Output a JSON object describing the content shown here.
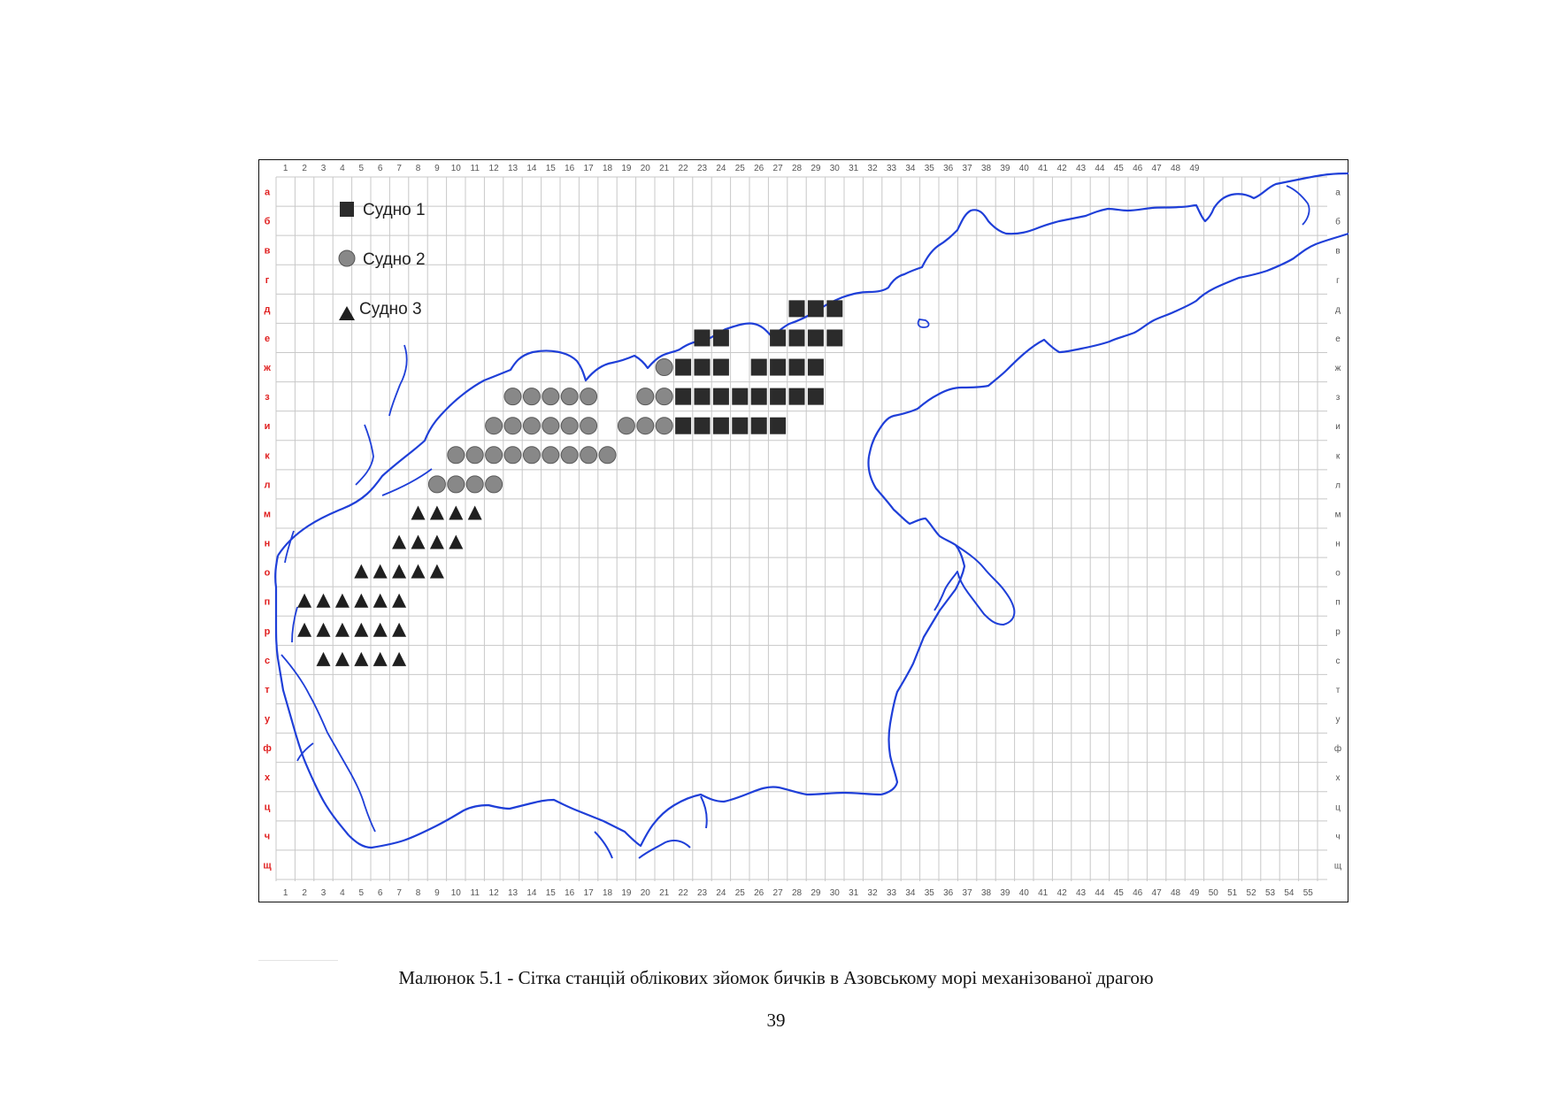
{
  "figure": {
    "column_labels_top": [
      "1",
      "2",
      "3",
      "4",
      "5",
      "6",
      "7",
      "8",
      "9",
      "10",
      "11",
      "12",
      "13",
      "14",
      "15",
      "16",
      "17",
      "18",
      "19",
      "20",
      "21",
      "22",
      "23",
      "24",
      "25",
      "26",
      "27",
      "28",
      "29",
      "30",
      "31",
      "32",
      "33",
      "34",
      "35",
      "36",
      "37",
      "38",
      "39",
      "40",
      "41",
      "42",
      "43",
      "44",
      "45",
      "46",
      "47",
      "48",
      "49"
    ],
    "column_labels_bottom": [
      "1",
      "2",
      "3",
      "4",
      "5",
      "6",
      "7",
      "8",
      "9",
      "10",
      "11",
      "12",
      "13",
      "14",
      "15",
      "16",
      "17",
      "18",
      "19",
      "20",
      "21",
      "22",
      "23",
      "24",
      "25",
      "26",
      "27",
      "28",
      "29",
      "30",
      "31",
      "32",
      "33",
      "34",
      "35",
      "36",
      "37",
      "38",
      "39",
      "40",
      "41",
      "42",
      "43",
      "44",
      "45",
      "46",
      "47",
      "48",
      "49",
      "50",
      "51",
      "52",
      "53",
      "54",
      "55"
    ],
    "row_labels": [
      "а",
      "б",
      "в",
      "г",
      "д",
      "е",
      "ж",
      "з",
      "и",
      "к",
      "л",
      "м",
      "н",
      "о",
      "п",
      "р",
      "с",
      "т",
      "у",
      "ф",
      "х",
      "ц",
      "ч",
      "щ"
    ],
    "legend": [
      {
        "label": "Судно 1",
        "marker": "square"
      },
      {
        "label": "Судно 2",
        "marker": "circle"
      },
      {
        "label": "Судно 3",
        "marker": "triangle"
      }
    ],
    "colors": {
      "coastline": "#1f3fd8",
      "grid": "#c8c8c8",
      "left_row_labels": "#e02020",
      "right_row_labels": "#555555",
      "column_labels": "#555555",
      "vessel_1": "#2b2b2b",
      "vessel_2": "#888888",
      "vessel_3": "#1f1f1f"
    },
    "stations": {
      "vessel_1": [
        [
          "д",
          28
        ],
        [
          "д",
          29
        ],
        [
          "д",
          30
        ],
        [
          "е",
          23
        ],
        [
          "е",
          24
        ],
        [
          "е",
          27
        ],
        [
          "е",
          28
        ],
        [
          "е",
          29
        ],
        [
          "е",
          30
        ],
        [
          "ж",
          22
        ],
        [
          "ж",
          23
        ],
        [
          "ж",
          24
        ],
        [
          "ж",
          26
        ],
        [
          "ж",
          27
        ],
        [
          "ж",
          28
        ],
        [
          "ж",
          29
        ],
        [
          "з",
          22
        ],
        [
          "з",
          23
        ],
        [
          "з",
          24
        ],
        [
          "з",
          25
        ],
        [
          "з",
          26
        ],
        [
          "з",
          27
        ],
        [
          "з",
          28
        ],
        [
          "з",
          29
        ],
        [
          "и",
          22
        ],
        [
          "и",
          23
        ],
        [
          "и",
          24
        ],
        [
          "и",
          25
        ],
        [
          "и",
          26
        ],
        [
          "и",
          27
        ]
      ],
      "vessel_2": [
        [
          "ж",
          21
        ],
        [
          "з",
          13
        ],
        [
          "з",
          14
        ],
        [
          "з",
          15
        ],
        [
          "з",
          16
        ],
        [
          "з",
          17
        ],
        [
          "з",
          20
        ],
        [
          "з",
          21
        ],
        [
          "и",
          12
        ],
        [
          "и",
          13
        ],
        [
          "и",
          14
        ],
        [
          "и",
          15
        ],
        [
          "и",
          16
        ],
        [
          "и",
          17
        ],
        [
          "и",
          19
        ],
        [
          "и",
          20
        ],
        [
          "и",
          21
        ],
        [
          "к",
          10
        ],
        [
          "к",
          11
        ],
        [
          "к",
          12
        ],
        [
          "к",
          13
        ],
        [
          "к",
          14
        ],
        [
          "к",
          15
        ],
        [
          "к",
          16
        ],
        [
          "к",
          17
        ],
        [
          "к",
          18
        ],
        [
          "л",
          9
        ],
        [
          "л",
          10
        ],
        [
          "л",
          11
        ],
        [
          "л",
          12
        ]
      ],
      "vessel_3": [
        [
          "м",
          8
        ],
        [
          "м",
          9
        ],
        [
          "м",
          10
        ],
        [
          "м",
          11
        ],
        [
          "н",
          7
        ],
        [
          "н",
          8
        ],
        [
          "н",
          9
        ],
        [
          "н",
          10
        ],
        [
          "о",
          5
        ],
        [
          "о",
          6
        ],
        [
          "о",
          7
        ],
        [
          "о",
          8
        ],
        [
          "о",
          9
        ],
        [
          "п",
          2
        ],
        [
          "п",
          3
        ],
        [
          "п",
          4
        ],
        [
          "п",
          5
        ],
        [
          "п",
          6
        ],
        [
          "п",
          7
        ],
        [
          "р",
          2
        ],
        [
          "р",
          3
        ],
        [
          "р",
          4
        ],
        [
          "р",
          5
        ],
        [
          "р",
          6
        ],
        [
          "р",
          7
        ],
        [
          "с",
          3
        ],
        [
          "с",
          4
        ],
        [
          "с",
          5
        ],
        [
          "с",
          6
        ],
        [
          "с",
          7
        ]
      ]
    }
  },
  "caption": "Малюнок 5.1 - Сітка станцій облікових зйомок бичків в Азовському морі механізованої драгою",
  "page_number": "39"
}
